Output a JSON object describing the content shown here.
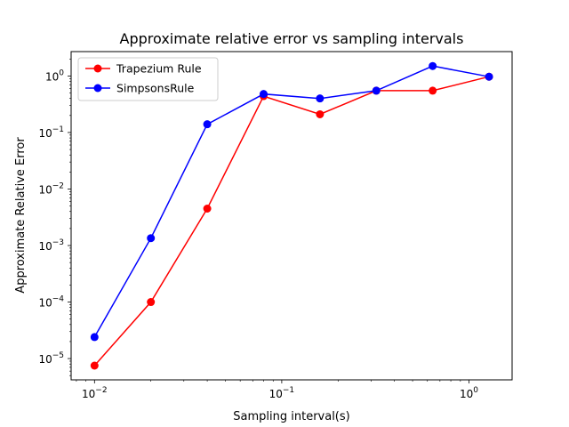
{
  "chart_data": {
    "type": "line",
    "title": "Approximate relative error vs sampling intervals",
    "xlabel": "Sampling interval(s)",
    "ylabel": "Approximate Relative Error",
    "xscale": "log",
    "yscale": "log",
    "xlim": [
      0.0075,
      1.7
    ],
    "ylim": [
      4.2e-06,
      2.7
    ],
    "x_ticks": [
      {
        "value": 0.01,
        "label": "10",
        "exp": "−2"
      },
      {
        "value": 0.1,
        "label": "10",
        "exp": "−1"
      },
      {
        "value": 1,
        "label": "10",
        "exp": "0"
      }
    ],
    "y_ticks": [
      {
        "value": 1e-05,
        "label": "10",
        "exp": "−5"
      },
      {
        "value": 0.0001,
        "label": "10",
        "exp": "−4"
      },
      {
        "value": 0.001,
        "label": "10",
        "exp": "−3"
      },
      {
        "value": 0.01,
        "label": "10",
        "exp": "−2"
      },
      {
        "value": 0.1,
        "label": "10",
        "exp": "−1"
      },
      {
        "value": 1,
        "label": "10",
        "exp": "0"
      }
    ],
    "grid": false,
    "legend_position": "top-left",
    "x": [
      0.01,
      0.02,
      0.04,
      0.08,
      0.16,
      0.32,
      0.64,
      1.28
    ],
    "series": [
      {
        "name": "Trapezium Rule",
        "color": "#ff0000",
        "values": [
          7.5e-06,
          0.0001,
          0.0045,
          0.44,
          0.21,
          0.55,
          0.55,
          0.97
        ]
      },
      {
        "name": "SimpsonsRule",
        "color": "#0000ff",
        "values": [
          2.4e-05,
          0.00135,
          0.14,
          0.48,
          0.4,
          0.55,
          1.5,
          0.97
        ]
      }
    ]
  }
}
